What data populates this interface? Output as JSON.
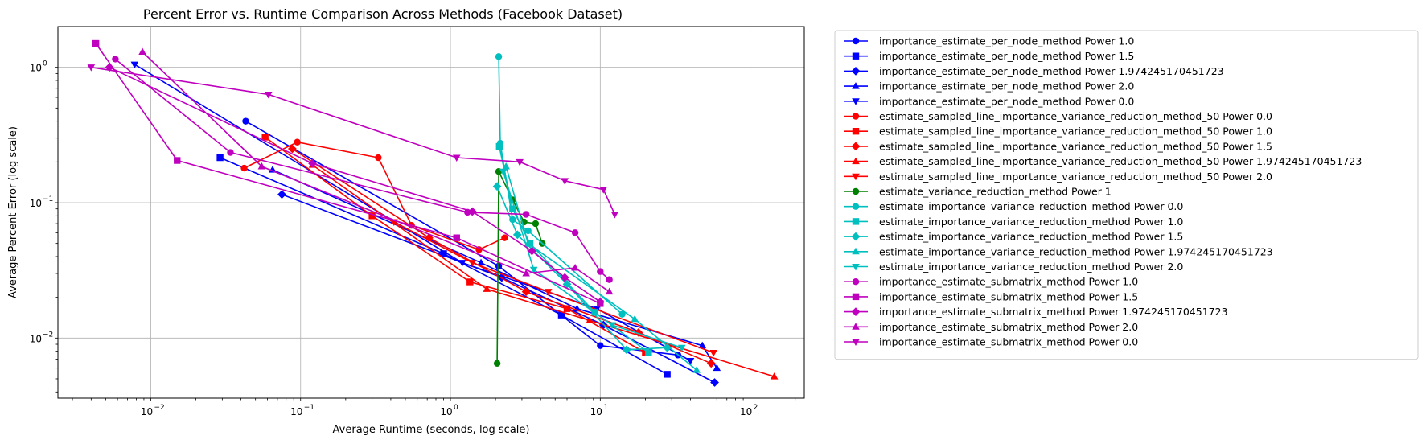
{
  "chart_data": {
    "type": "line",
    "title": "Percent Error vs. Runtime Comparison Across Methods (Facebook Dataset)",
    "xlabel": "Average Runtime (seconds, log scale)",
    "ylabel": "Average Percent Error (log scale)",
    "xscale": "log",
    "yscale": "log",
    "xlim": [
      0.0024,
      230
    ],
    "ylim": [
      0.0036,
      2.0
    ],
    "grid": true,
    "legend_position": "outside-right",
    "x_ticks": [
      {
        "value": 0.01,
        "base": "10",
        "exp": "−2"
      },
      {
        "value": 0.1,
        "base": "10",
        "exp": "−1"
      },
      {
        "value": 1,
        "base": "10",
        "exp": "0"
      },
      {
        "value": 10,
        "base": "10",
        "exp": "1"
      },
      {
        "value": 100,
        "base": "10",
        "exp": "2"
      }
    ],
    "y_ticks": [
      {
        "value": 0.01,
        "base": "10",
        "exp": "−2"
      },
      {
        "value": 0.1,
        "base": "10",
        "exp": "−1"
      },
      {
        "value": 1,
        "base": "10",
        "exp": "0"
      }
    ],
    "series": [
      {
        "name": "importance_estimate_per_node_method Power 1.0",
        "color": "#0000ff",
        "marker": "circle",
        "points": [
          [
            0.043,
            0.4
          ],
          [
            2.1,
            0.034
          ],
          [
            10,
            0.0088
          ],
          [
            33,
            0.0075
          ]
        ]
      },
      {
        "name": "importance_estimate_per_node_method Power 1.5",
        "color": "#0000ff",
        "marker": "square",
        "points": [
          [
            0.029,
            0.215
          ],
          [
            0.9,
            0.042
          ],
          [
            5.5,
            0.0148
          ],
          [
            28,
            0.0054
          ]
        ]
      },
      {
        "name": "importance_estimate_per_node_method Power 1.974245170451723",
        "color": "#0000ff",
        "marker": "diamond",
        "points": [
          [
            0.075,
            0.115
          ],
          [
            2.2,
            0.028
          ],
          [
            10.5,
            0.0125
          ],
          [
            58,
            0.0047
          ]
        ]
      },
      {
        "name": "importance_estimate_per_node_method Power 2.0",
        "color": "#0000ff",
        "marker": "triangle-up",
        "points": [
          [
            0.065,
            0.175
          ],
          [
            1.6,
            0.036
          ],
          [
            7,
            0.0165
          ],
          [
            48,
            0.0088
          ],
          [
            60,
            0.006
          ]
        ]
      },
      {
        "name": "importance_estimate_per_node_method Power 0.0",
        "color": "#0000ff",
        "marker": "triangle-down",
        "points": [
          [
            0.0078,
            1.05
          ],
          [
            1.2,
            0.036
          ],
          [
            9.5,
            0.0165
          ],
          [
            40,
            0.0068
          ]
        ]
      },
      {
        "name": "estimate_sampled_line_importance_variance_reduction_method_50 Power 0.0",
        "color": "#ff0000",
        "marker": "circle",
        "points": [
          [
            0.042,
            0.18
          ],
          [
            0.095,
            0.28
          ],
          [
            0.33,
            0.215
          ],
          [
            0.55,
            0.068
          ],
          [
            1.55,
            0.045
          ],
          [
            2.3,
            0.055
          ]
        ]
      },
      {
        "name": "estimate_sampled_line_importance_variance_reduction_method_50 Power 1.0",
        "color": "#ff0000",
        "marker": "square",
        "points": [
          [
            0.058,
            0.305
          ],
          [
            0.3,
            0.08
          ],
          [
            1.35,
            0.026
          ],
          [
            6,
            0.0165
          ],
          [
            20,
            0.0078
          ]
        ]
      },
      {
        "name": "estimate_sampled_line_importance_variance_reduction_method_50 Power 1.5",
        "color": "#ff0000",
        "marker": "diamond",
        "points": [
          [
            0.088,
            0.25
          ],
          [
            0.72,
            0.055
          ],
          [
            3.2,
            0.022
          ],
          [
            18,
            0.011
          ],
          [
            55,
            0.0065
          ]
        ]
      },
      {
        "name": "estimate_sampled_line_importance_variance_reduction_method_50 Power 1.974245170451723",
        "color": "#ff0000",
        "marker": "triangle-up",
        "points": [
          [
            0.12,
            0.19
          ],
          [
            1.75,
            0.023
          ],
          [
            8.5,
            0.0135
          ],
          [
            145,
            0.0052
          ]
        ]
      },
      {
        "name": "estimate_sampled_line_importance_variance_reduction_method_50 Power 2.0",
        "color": "#ff0000",
        "marker": "triangle-down",
        "points": [
          [
            0.42,
            0.072
          ],
          [
            1.4,
            0.036
          ],
          [
            4.5,
            0.022
          ],
          [
            57,
            0.0078
          ]
        ]
      },
      {
        "name": "estimate_variance_reduction_method Power 1",
        "color": "#008000",
        "marker": "circle",
        "points": [
          [
            2.05,
            0.0065
          ],
          [
            2.1,
            0.17
          ],
          [
            2.6,
            0.105
          ],
          [
            3.1,
            0.072
          ],
          [
            3.7,
            0.07
          ],
          [
            4.1,
            0.05
          ]
        ]
      },
      {
        "name": "estimate_importance_variance_reduction_method Power 0.0",
        "color": "#00bfbf",
        "marker": "circle",
        "points": [
          [
            2.1,
            1.2
          ],
          [
            2.15,
            0.275
          ],
          [
            2.6,
            0.075
          ],
          [
            3.3,
            0.062
          ],
          [
            14,
            0.015
          ]
        ]
      },
      {
        "name": "estimate_importance_variance_reduction_method Power 1.0",
        "color": "#00bfbf",
        "marker": "square",
        "points": [
          [
            2.12,
            0.26
          ],
          [
            2.6,
            0.09
          ],
          [
            3.4,
            0.05
          ],
          [
            9.2,
            0.0155
          ],
          [
            21,
            0.0078
          ]
        ]
      },
      {
        "name": "estimate_importance_variance_reduction_method Power 1.5",
        "color": "#00bfbf",
        "marker": "diamond",
        "points": [
          [
            2.05,
            0.132
          ],
          [
            2.8,
            0.058
          ],
          [
            6,
            0.025
          ],
          [
            15,
            0.0082
          ],
          [
            28,
            0.0085
          ]
        ]
      },
      {
        "name": "estimate_importance_variance_reduction_method Power 1.974245170451723",
        "color": "#00bfbf",
        "marker": "triangle-up",
        "points": [
          [
            2.35,
            0.185
          ],
          [
            3.3,
            0.05
          ],
          [
            17,
            0.0138
          ],
          [
            44,
            0.0058
          ]
        ]
      },
      {
        "name": "estimate_importance_variance_reduction_method Power 2.0",
        "color": "#00bfbf",
        "marker": "triangle-down",
        "points": [
          [
            2.25,
            0.17
          ],
          [
            3.6,
            0.032
          ],
          [
            12,
            0.0125
          ],
          [
            35,
            0.0085
          ]
        ]
      },
      {
        "name": "importance_estimate_submatrix_method Power 1.0",
        "color": "#bf00bf",
        "marker": "circle",
        "points": [
          [
            0.0058,
            1.15
          ],
          [
            0.034,
            0.235
          ],
          [
            1.3,
            0.085
          ],
          [
            3.2,
            0.082
          ],
          [
            6.8,
            0.06
          ],
          [
            10,
            0.031
          ],
          [
            11.5,
            0.027
          ]
        ]
      },
      {
        "name": "importance_estimate_submatrix_method Power 1.5",
        "color": "#bf00bf",
        "marker": "square",
        "points": [
          [
            0.0043,
            1.5
          ],
          [
            0.015,
            0.205
          ],
          [
            1.1,
            0.055
          ],
          [
            10,
            0.018
          ]
        ]
      },
      {
        "name": "importance_estimate_submatrix_method Power 1.974245170451723",
        "color": "#bf00bf",
        "marker": "diamond",
        "points": [
          [
            0.0053,
            1.0
          ],
          [
            0.12,
            0.195
          ],
          [
            1.4,
            0.086
          ],
          [
            3.5,
            0.044
          ],
          [
            5.8,
            0.028
          ],
          [
            10,
            0.0185
          ]
        ]
      },
      {
        "name": "importance_estimate_submatrix_method Power 2.0",
        "color": "#bf00bf",
        "marker": "triangle-up",
        "points": [
          [
            0.0088,
            1.3
          ],
          [
            0.055,
            0.185
          ],
          [
            3.2,
            0.03
          ],
          [
            6.8,
            0.033
          ],
          [
            11.5,
            0.022
          ]
        ]
      },
      {
        "name": "importance_estimate_submatrix_method Power 0.0",
        "color": "#bf00bf",
        "marker": "triangle-down",
        "points": [
          [
            0.004,
            1.0
          ],
          [
            0.061,
            0.63
          ],
          [
            1.1,
            0.215
          ],
          [
            2.9,
            0.2
          ],
          [
            5.8,
            0.145
          ],
          [
            10.5,
            0.125
          ],
          [
            12.5,
            0.082
          ]
        ]
      }
    ]
  }
}
